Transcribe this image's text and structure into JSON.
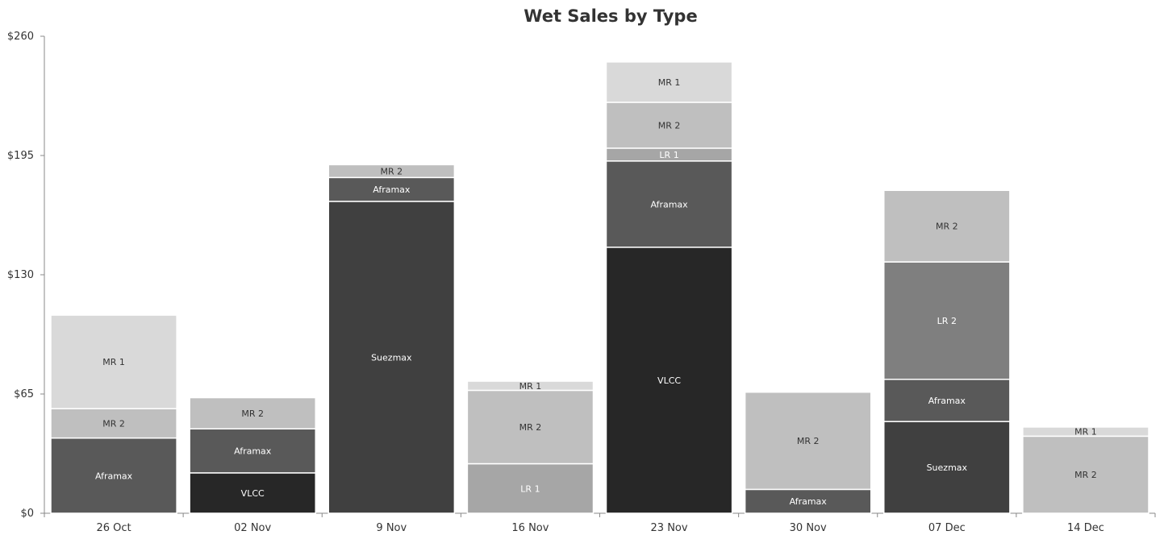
{
  "chart_data": {
    "type": "bar",
    "stacked": true,
    "title": "Wet Sales by Type",
    "xlabel": "",
    "ylabel": "",
    "ylim": [
      0,
      260
    ],
    "yticks": [
      0,
      65,
      130,
      195,
      260
    ],
    "ytick_labels": [
      "$0",
      "$65",
      "$130",
      "$195",
      "$260"
    ],
    "grid": false,
    "legend": "none",
    "categories": [
      "26 Oct",
      "02 Nov",
      "9 Nov",
      "16 Nov",
      "23 Nov",
      "30 Nov",
      "07 Dec",
      "14 Dec"
    ],
    "series": [
      {
        "name": "VLCC",
        "color": "#272727",
        "label_color": "#ffffff",
        "values": [
          0,
          22,
          0,
          0,
          145,
          0,
          0,
          0
        ]
      },
      {
        "name": "Suezmax",
        "color": "#404040",
        "label_color": "#ffffff",
        "values": [
          0,
          0,
          170,
          0,
          0,
          0,
          50,
          0
        ]
      },
      {
        "name": "Aframax",
        "color": "#595959",
        "label_color": "#ffffff",
        "values": [
          41,
          24,
          13,
          0,
          47,
          13,
          23,
          0
        ]
      },
      {
        "name": "LR 2",
        "color": "#7f7f7f",
        "label_color": "#ffffff",
        "values": [
          0,
          0,
          0,
          0,
          0,
          0,
          64,
          0
        ]
      },
      {
        "name": "LR 1",
        "color": "#a6a6a6",
        "label_color": "#ffffff",
        "values": [
          0,
          0,
          0,
          27,
          7,
          0,
          0,
          0
        ]
      },
      {
        "name": "MR 2",
        "color": "#bfbfbf",
        "label_color": "#333333",
        "values": [
          16,
          17,
          7,
          40,
          25,
          53,
          39,
          42
        ]
      },
      {
        "name": "MR 1",
        "color": "#d9d9d9",
        "label_color": "#333333",
        "values": [
          51,
          0,
          0,
          5,
          22,
          0,
          0,
          5
        ]
      }
    ]
  }
}
